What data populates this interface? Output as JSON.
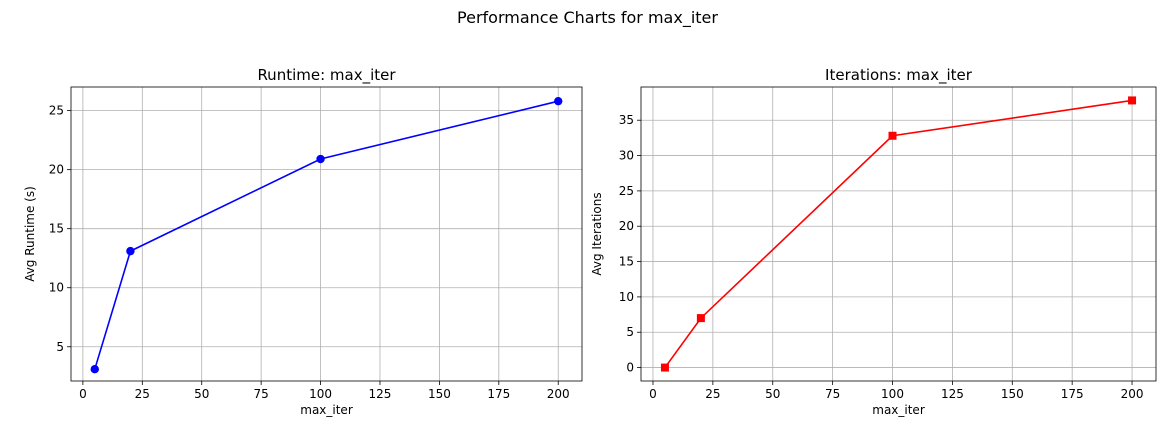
{
  "figure": {
    "title": "Performance Charts for max_iter"
  },
  "chart_data": [
    {
      "type": "line",
      "title": "Runtime: max_iter",
      "xlabel": "max_iter",
      "ylabel": "Avg Runtime (s)",
      "x": [
        5,
        20,
        100,
        200
      ],
      "xlim": [
        -5,
        210
      ],
      "ylim": [
        2.1,
        27.0
      ],
      "xticks": [
        0,
        25,
        50,
        75,
        100,
        125,
        150,
        175,
        200
      ],
      "yticks": [
        5,
        10,
        15,
        20,
        25
      ],
      "grid": true,
      "series": [
        {
          "values": [
            3.1,
            13.1,
            20.9,
            25.8
          ],
          "color": "#0000ff",
          "marker": "circle"
        }
      ]
    },
    {
      "type": "line",
      "title": "Iterations: max_iter",
      "xlabel": "max_iter",
      "ylabel": "Avg Iterations",
      "x": [
        5,
        20,
        100,
        200
      ],
      "xlim": [
        -5,
        210
      ],
      "ylim": [
        -1.9,
        39.7
      ],
      "xticks": [
        0,
        25,
        50,
        75,
        100,
        125,
        150,
        175,
        200
      ],
      "yticks": [
        0,
        5,
        10,
        15,
        20,
        25,
        30,
        35
      ],
      "grid": true,
      "series": [
        {
          "values": [
            0.0,
            7.0,
            32.8,
            37.8
          ],
          "color": "#ff0000",
          "marker": "square"
        }
      ]
    }
  ]
}
